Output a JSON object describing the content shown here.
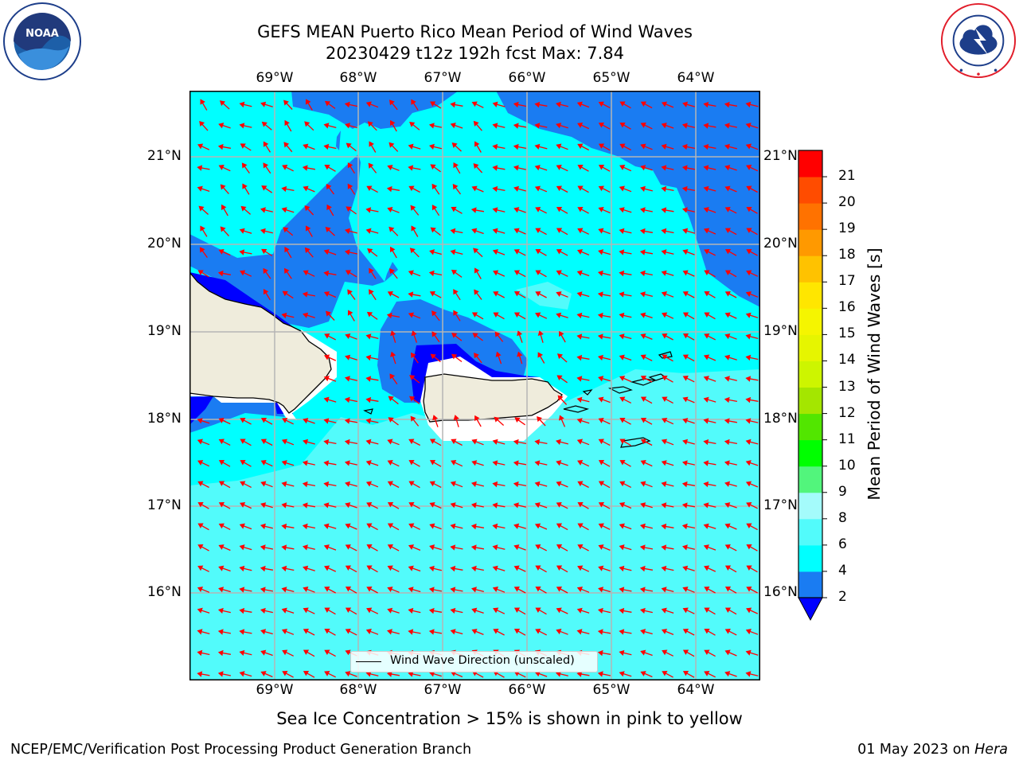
{
  "header": {
    "title_line1": "GEFS MEAN Puerto Rico Mean Period of Wind Waves",
    "title_line2": "20230429 t12z 192h fcst   Max: 7.84"
  },
  "logos": {
    "left": {
      "text": "NOAA",
      "icon": "noaa-logo",
      "color": "#1d5fa8"
    },
    "right": {
      "text": "NATIONAL WEATHER SERVICE",
      "icon": "nws-logo",
      "color": "#e11d2a"
    }
  },
  "map": {
    "lon_labels": [
      "69°W",
      "68°W",
      "67°W",
      "66°W",
      "65°W",
      "64°W"
    ],
    "lat_labels": [
      "21°N",
      "20°N",
      "19°N",
      "18°N",
      "17°N",
      "16°N"
    ],
    "legend_label": "Wind Wave Direction (unscaled)",
    "colors": {
      "band_2_4": "#1a7cf2",
      "band_4_6": "#00ffff",
      "band_6_8": "#52fbfb",
      "band_min": "#0000ff",
      "land": "#efecdc",
      "arrow": "#ff0000",
      "grid": "#b5b5b5"
    }
  },
  "colorbar": {
    "label": "Mean Period of Wind Waves [s]",
    "ticks": [
      "2",
      "4",
      "6",
      "8",
      "9",
      "10",
      "11",
      "12",
      "13",
      "14",
      "15",
      "16",
      "17",
      "18",
      "19",
      "20",
      "21"
    ],
    "colors": [
      "#1a7cf2",
      "#00ffff",
      "#52fbfb",
      "#a4fbfb",
      "#52f57c",
      "#00ff00",
      "#52e600",
      "#a4e600",
      "#cdf500",
      "#e6f500",
      "#f5f500",
      "#ffe600",
      "#ffc200",
      "#ff9900",
      "#ff7200",
      "#ff4c00",
      "#ff0000"
    ],
    "under_color": "#0000ff"
  },
  "notes": {
    "sea_ice": "Sea Ice Concentration > 15% is shown in pink to yellow"
  },
  "footer": {
    "left": "NCEP/EMC/Verification Post Processing Product Generation Branch",
    "right_date": "01 May 2023 on ",
    "right_machine": "Hera"
  }
}
